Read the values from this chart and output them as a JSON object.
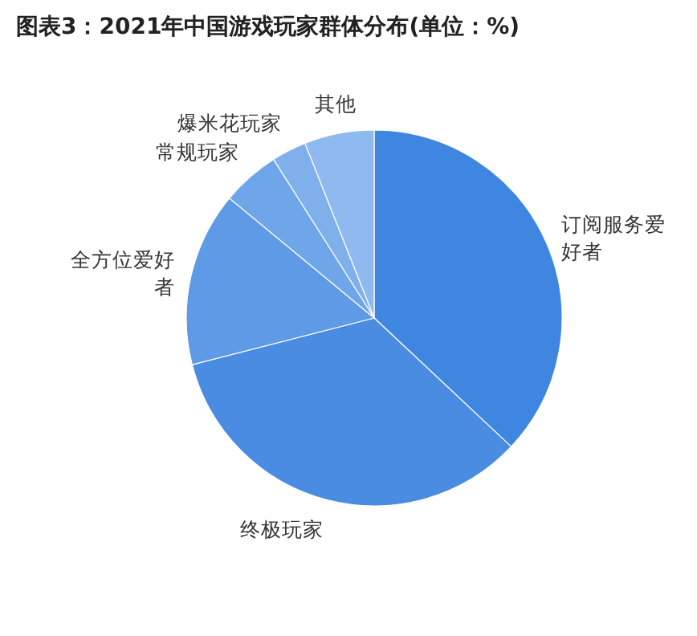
{
  "chart_data": {
    "type": "pie",
    "title": "图表3：2021年中国游戏玩家群体分布(单位：%)",
    "categories": [
      "订阅服务爱好者",
      "终极玩家",
      "全方位爱好者",
      "常规玩家",
      "爆米花玩家",
      "其他"
    ],
    "values": [
      37,
      34,
      15,
      5,
      3,
      6
    ],
    "colors": [
      "#3f86e0",
      "#4a8ce2",
      "#5e9ae6",
      "#6fa6ea",
      "#7fb0ec",
      "#8fbaf0"
    ]
  }
}
